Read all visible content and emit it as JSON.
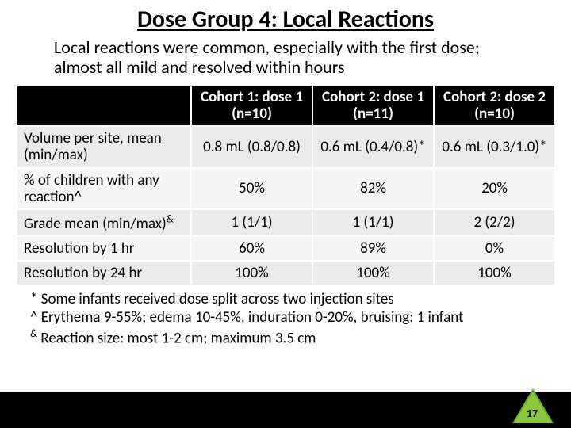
{
  "title": "Dose Group 4: Local Reactions",
  "subtitle": "Local reactions were common, especially with the first dose; almost all mild and resolved within hours",
  "table": {
    "header_bg": "#000000",
    "header_fg": "#ffffff",
    "band_a_bg": "#eaeaea",
    "band_b_bg": "#f5f5f5",
    "border_color": "#ffffff",
    "columns": [
      {
        "label": ""
      },
      {
        "label": "Cohort 1: dose 1 (n=10)"
      },
      {
        "label": "Cohort 2: dose 1 (n=11)"
      },
      {
        "label": "Cohort 2: dose 2 (n=10)"
      }
    ],
    "rows": [
      {
        "label": "Volume per site, mean (min/max)",
        "cells": [
          "0.8 mL (0.8/0.8)",
          "0.6 mL (0.4/0.8)*",
          "0.6 mL (0.3/1.0)*"
        ]
      },
      {
        "label": "% of children with any reaction^",
        "cells": [
          "50%",
          "82%",
          "20%"
        ]
      },
      {
        "label": "Grade mean (min/max)&",
        "cells": [
          "1  (1/1)",
          "1  (1/1)",
          "2  (2/2)"
        ]
      },
      {
        "label": "Resolution by 1 hr",
        "cells": [
          "60%",
          "89%",
          "0%"
        ]
      },
      {
        "label": "Resolution by 24 hr",
        "cells": [
          "100%",
          "100%",
          "100%"
        ]
      }
    ]
  },
  "footnotes": [
    "* Some infants received dose split across two injection sites",
    "^ Erythema 9-55%; edema 10-45%, induration 0-20%, bruising: 1 infant",
    "& Reaction size: most 1-2 cm; maximum 3.5 cm"
  ],
  "page_number": "17",
  "colors": {
    "triangle_outer": "#6aa52d",
    "triangle_inner": "#8cc63f",
    "bottom_bar": "#000000"
  }
}
